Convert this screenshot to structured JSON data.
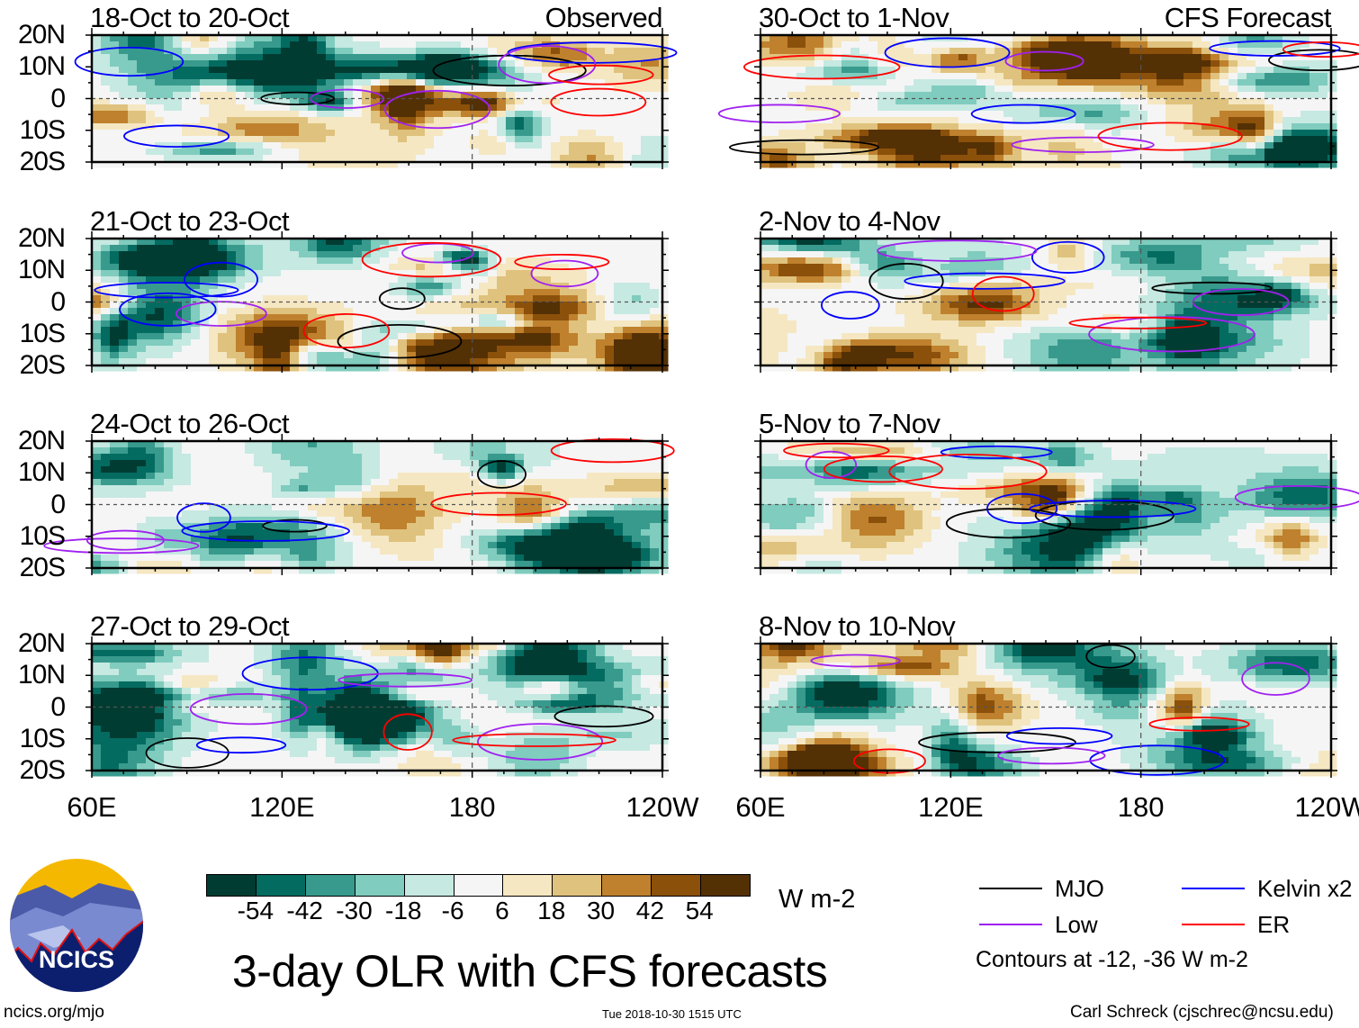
{
  "chart_data": {
    "type": "heatmap",
    "title": "3-day OLR with CFS forecasts",
    "units": "W m-2",
    "panels": [
      {
        "title": "18-Oct to 20-Oct",
        "tag": "Observed",
        "column": "left"
      },
      {
        "title": "21-Oct to 23-Oct",
        "tag": "",
        "column": "left"
      },
      {
        "title": "24-Oct to 26-Oct",
        "tag": "",
        "column": "left"
      },
      {
        "title": "27-Oct to 29-Oct",
        "tag": "",
        "column": "left"
      },
      {
        "title": "30-Oct to 1-Nov",
        "tag": "CFS Forecast",
        "column": "right"
      },
      {
        "title": "2-Nov to 4-Nov",
        "tag": "",
        "column": "right"
      },
      {
        "title": "5-Nov to 7-Nov",
        "tag": "",
        "column": "right"
      },
      {
        "title": "8-Nov to 10-Nov",
        "tag": "",
        "column": "right"
      }
    ],
    "lat_ticks": [
      "20N",
      "10N",
      "0",
      "10S",
      "20S"
    ],
    "lon_ticks": [
      "60E",
      "120E",
      "180",
      "120W"
    ],
    "ylim": [
      -20,
      20
    ],
    "xlim_deg_east": [
      60,
      240
    ],
    "colorbar": {
      "levels": [
        -54,
        -42,
        -30,
        -18,
        -6,
        6,
        18,
        30,
        42,
        54
      ],
      "labels": [
        "-54",
        "-42",
        "-30",
        "-18",
        "-6",
        "6",
        "18",
        "30",
        "42",
        "54"
      ],
      "colors": [
        "#013c32",
        "#046b61",
        "#389a8d",
        "#80ccbe",
        "#c6e9e2",
        "#f5f5f5",
        "#f5e7c2",
        "#dfc27d",
        "#bf812d",
        "#8b500a",
        "#543005"
      ]
    },
    "legend": {
      "items": [
        {
          "label": "MJO",
          "color": "#000000"
        },
        {
          "label": "Kelvin x2",
          "color": "#0000ff"
        },
        {
          "label": "Low",
          "color": "#a020f0"
        },
        {
          "label": "ER",
          "color": "#ff0000"
        }
      ],
      "note": "Contours at -12, -36 W m-2"
    }
  },
  "footer": {
    "site": "ncics.org/mjo",
    "timestamp": "Tue 2018-10-30 1515 UTC",
    "author": "Carl Schreck (cjschrec@ncsu.edu)",
    "logo_text": "NCICS"
  }
}
